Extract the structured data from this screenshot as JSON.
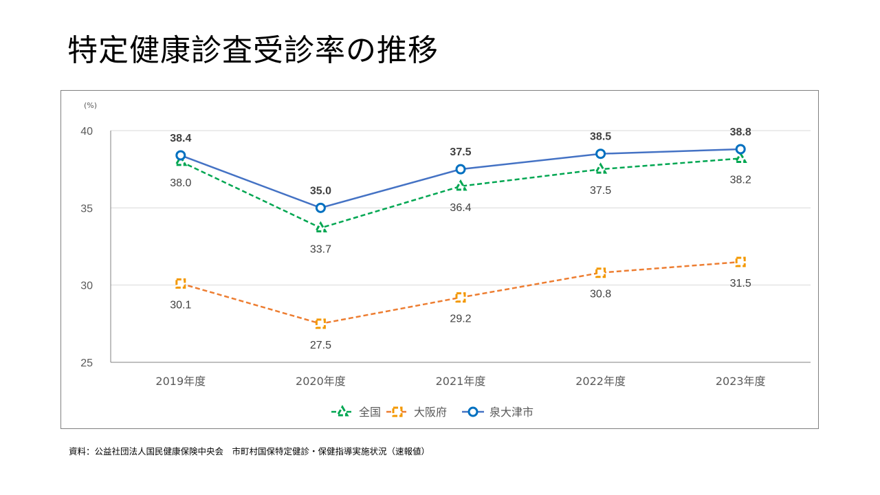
{
  "page": {
    "title": "特定健康診査受診率の推移",
    "source": "資料：公益社団法人国民健康保険中央会　市町村国保特定健診・保健指導実施状況（速報値）"
  },
  "chart_data": {
    "type": "line",
    "title": "特定健康診査受診率の推移",
    "xlabel": "",
    "ylabel": "",
    "unit_label": "(%)",
    "categories": [
      "2019年度",
      "2020年度",
      "2021年度",
      "2022年度",
      "2023年度"
    ],
    "ylim": [
      25,
      40
    ],
    "yticks": [
      25,
      30,
      35,
      40
    ],
    "grid": true,
    "legend_position": "bottom",
    "series": [
      {
        "name": "全国",
        "values": [
          38.0,
          33.7,
          36.4,
          37.5,
          38.2
        ],
        "color": "#00a651",
        "line": "dashed",
        "marker": "triangle",
        "label_position": "below",
        "label_bold": false
      },
      {
        "name": "大阪府",
        "values": [
          30.1,
          27.5,
          29.2,
          30.8,
          31.5
        ],
        "color": "#ed7d31",
        "marker_color": "#f39800",
        "line": "dashed",
        "marker": "square",
        "label_position": "below",
        "label_bold": false
      },
      {
        "name": "泉大津市",
        "values": [
          38.4,
          35.0,
          37.5,
          38.5,
          38.8
        ],
        "color": "#4472c4",
        "marker_color": "#0070c0",
        "line": "solid",
        "marker": "circle",
        "label_position": "above",
        "label_bold": true
      }
    ]
  }
}
